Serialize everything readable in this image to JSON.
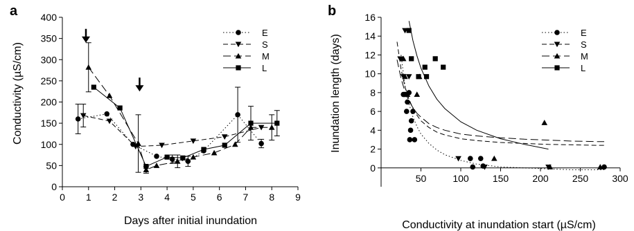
{
  "panels": [
    {
      "letter": "a"
    },
    {
      "letter": "b"
    }
  ],
  "chart_data": [
    {
      "type": "line",
      "xlabel": "Days after initial inundation",
      "ylabel": "Conductivity (µS/cm)",
      "xlim": [
        0,
        9
      ],
      "ylim": [
        0,
        400
      ],
      "xticks": [
        0,
        1,
        2,
        3,
        4,
        5,
        6,
        7,
        8,
        9
      ],
      "yticks": [
        0,
        50,
        100,
        150,
        200,
        250,
        300,
        350,
        400
      ],
      "legend_position": "top-right",
      "annotations": [
        {
          "type": "arrow-down",
          "x": 0.9,
          "y_tip": 340
        },
        {
          "type": "arrow-down",
          "x": 2.95,
          "y_tip": 225
        }
      ],
      "series": [
        {
          "name": "E",
          "line": "dotted",
          "marker": "circle",
          "x": [
            0.6,
            1.7,
            2.7,
            3.6,
            4.2,
            4.8,
            5.4,
            6.7,
            7.6
          ],
          "y": [
            160,
            172,
            100,
            72,
            65,
            60,
            85,
            170,
            102
          ],
          "err": [
            35,
            0,
            0,
            0,
            10,
            12,
            0,
            65,
            10
          ]
        },
        {
          "name": "S",
          "line": "dashed",
          "marker": "triangle-down",
          "x": [
            0.8,
            1.8,
            2.8,
            3.8,
            5.0,
            6.2,
            7.6
          ],
          "y": [
            168,
            155,
            95,
            98,
            108,
            118,
            140
          ],
          "err": [
            27,
            0,
            0,
            0,
            0,
            0,
            0
          ]
        },
        {
          "name": "M",
          "line": "long-dashed",
          "marker": "triangle-up",
          "x": [
            1.0,
            1.8,
            2.9,
            3.2,
            3.6,
            4.4,
            5.0,
            5.8,
            6.6,
            7.2,
            8.0
          ],
          "y": [
            282,
            215,
            102,
            40,
            50,
            60,
            70,
            80,
            100,
            140,
            140
          ],
          "err": [
            58,
            0,
            68,
            8,
            0,
            15,
            0,
            0,
            0,
            0,
            30
          ]
        },
        {
          "name": "L",
          "line": "solid",
          "marker": "square",
          "x": [
            1.2,
            2.2,
            3.2,
            4.0,
            4.6,
            5.4,
            6.2,
            7.2,
            8.2
          ],
          "y": [
            235,
            186,
            48,
            70,
            68,
            88,
            98,
            150,
            150
          ],
          "err": [
            0,
            0,
            0,
            0,
            0,
            0,
            0,
            40,
            30
          ]
        }
      ]
    },
    {
      "type": "scatter",
      "xlabel": "Conductivity at inundation start (µS/cm)",
      "ylabel": "Inundation length (days)",
      "xlim": [
        0,
        300
      ],
      "ylim": [
        -2,
        16
      ],
      "xticks": [
        50,
        100,
        150,
        200,
        250,
        300
      ],
      "yticks": [
        0,
        2,
        4,
        6,
        8,
        10,
        12,
        14,
        16
      ],
      "legend_position": "top-right",
      "series": [
        {
          "name": "E",
          "line": "dotted",
          "marker": "circle",
          "points": [
            [
              28,
              7.8
            ],
            [
              30,
              7.8
            ],
            [
              32,
              6.0
            ],
            [
              33,
              7.0
            ],
            [
              35,
              8.0
            ],
            [
              36,
              3.0
            ],
            [
              37,
              4.0
            ],
            [
              38,
              5.0
            ],
            [
              40,
              6.0
            ],
            [
              42,
              3.0
            ],
            [
              112,
              1.0
            ],
            [
              115,
              0.1
            ],
            [
              125,
              1.0
            ],
            [
              128,
              0.2
            ],
            [
              280,
              0.1
            ]
          ],
          "fit": {
            "x": [
              25,
              30,
              35,
              40,
              45,
              50,
              60,
              70,
              80,
              100,
              120,
              150,
              180,
              210,
              240,
              270,
              280
            ],
            "y": [
              12.0,
              8.7,
              6.8,
              5.4,
              4.4,
              3.6,
              2.6,
              1.9,
              1.4,
              0.8,
              0.4,
              0.1,
              0.0,
              -0.1,
              -0.2,
              -0.2,
              -0.2
            ]
          }
        },
        {
          "name": "S",
          "line": "dashed",
          "marker": "triangle-down",
          "points": [
            [
              24,
              11.6
            ],
            [
              28,
              9.7
            ],
            [
              30,
              14.6
            ],
            [
              32,
              7.8
            ],
            [
              35,
              9.7
            ],
            [
              97,
              1.0
            ],
            [
              130,
              0.1
            ],
            [
              210,
              0.1
            ]
          ],
          "fit": {
            "x": [
              20,
              25,
              30,
              35,
              40,
              45,
              50,
              60,
              70,
              80,
              100,
              120,
              150,
              180,
              210,
              240,
              270,
              280
            ],
            "y": [
              13.4,
              10.5,
              8.6,
              7.3,
              6.3,
              5.6,
              5.0,
              4.3,
              3.8,
              3.5,
              3.1,
              2.9,
              2.7,
              2.6,
              2.5,
              2.45,
              2.4,
              2.4
            ]
          }
        },
        {
          "name": "M",
          "line": "long-dashed",
          "marker": "triangle-up",
          "points": [
            [
              28,
              11.6
            ],
            [
              30,
              9.7
            ],
            [
              33,
              7.8
            ],
            [
              45,
              7.8
            ],
            [
              48,
              9.7
            ],
            [
              142,
              1.0
            ],
            [
              205,
              4.8
            ],
            [
              212,
              0.1
            ],
            [
              275,
              0.1
            ]
          ],
          "fit": {
            "x": [
              20,
              25,
              30,
              35,
              40,
              45,
              50,
              60,
              70,
              80,
              100,
              120,
              150,
              180,
              210,
              240,
              270,
              280
            ],
            "y": [
              11.5,
              9.5,
              8.1,
              7.1,
              6.4,
              5.8,
              5.4,
              4.7,
              4.3,
              4.0,
              3.6,
              3.4,
              3.2,
              3.05,
              2.95,
              2.85,
              2.8,
              2.8
            ]
          }
        },
        {
          "name": "L",
          "line": "solid",
          "marker": "square",
          "points": [
            [
              35,
              14.6
            ],
            [
              38,
              11.6
            ],
            [
              47,
              9.7
            ],
            [
              55,
              10.7
            ],
            [
              57,
              9.7
            ],
            [
              68,
              11.6
            ],
            [
              78,
              10.7
            ]
          ],
          "fit": {
            "x": [
              35,
              40,
              45,
              50,
              60,
              70,
              80,
              100,
              120,
              150,
              180,
              210
            ],
            "y": [
              15.6,
              13.5,
              11.9,
              10.6,
              8.7,
              7.3,
              6.3,
              4.9,
              4.0,
              3.1,
              2.5,
              2.0
            ]
          }
        }
      ]
    }
  ]
}
